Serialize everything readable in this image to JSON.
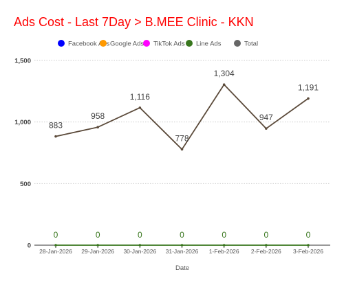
{
  "chart_data": {
    "type": "line",
    "title": "Ads Cost - Last 7Day > B.MEE Clinic - KKN",
    "xlabel": "Date",
    "ylabel": "",
    "categories": [
      "28-Jan-2026",
      "29-Jan-2026",
      "30-Jan-2026",
      "31-Jan-2026",
      "1-Feb-2026",
      "2-Feb-2026",
      "3-Feb-2026"
    ],
    "ylim": [
      0,
      1500
    ],
    "yticks": [
      0,
      500,
      1000,
      1500
    ],
    "ytick_labels": [
      "0",
      "500",
      "1,000",
      "1,500"
    ],
    "grid": true,
    "legend_position": "top-center",
    "series": [
      {
        "name": "Facebook Ads",
        "color": "#0000ff",
        "values": [
          0,
          0,
          0,
          0,
          0,
          0,
          0
        ],
        "show_line": false
      },
      {
        "name": "Google Ads",
        "color": "#ff9900",
        "values": [
          0,
          0,
          0,
          0,
          0,
          0,
          0
        ],
        "show_line": false
      },
      {
        "name": "TikTok Ads",
        "color": "#ff00ff",
        "values": [
          0,
          0,
          0,
          0,
          0,
          0,
          0
        ],
        "show_line": false
      },
      {
        "name": "Line Ads",
        "color": "#38761d",
        "values": [
          0,
          0,
          0,
          0,
          0,
          0,
          0
        ],
        "show_line": true,
        "labels": [
          "0",
          "0",
          "0",
          "0",
          "0",
          "0",
          "0"
        ]
      },
      {
        "name": "Total",
        "color": "#666666",
        "line_color": "#5b4a3a",
        "values": [
          883,
          958,
          1116,
          778,
          1304,
          947,
          1191
        ],
        "show_line": true,
        "labels": [
          "883",
          "958",
          "1,116",
          "778",
          "1,304",
          "947",
          "1,191"
        ]
      }
    ]
  }
}
